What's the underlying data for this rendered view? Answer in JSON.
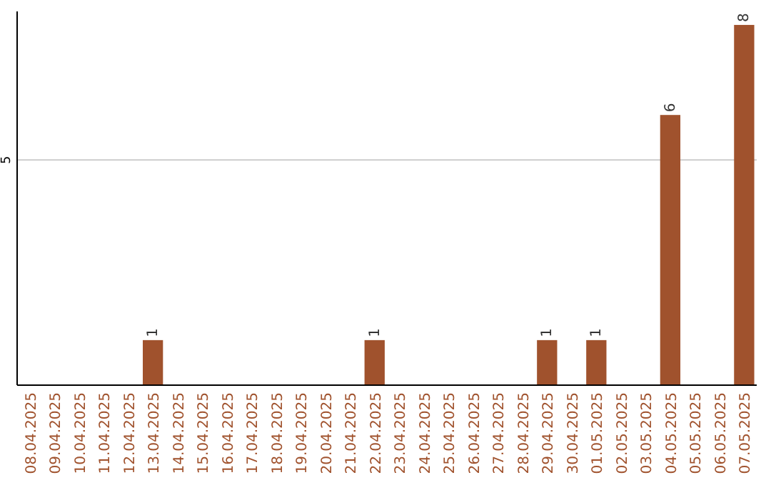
{
  "chart_data": {
    "type": "bar",
    "categories": [
      "08.04.2025",
      "09.04.2025",
      "10.04.2025",
      "11.04.2025",
      "12.04.2025",
      "13.04.2025",
      "14.04.2025",
      "15.04.2025",
      "16.04.2025",
      "17.04.2025",
      "18.04.2025",
      "19.04.2025",
      "20.04.2025",
      "21.04.2025",
      "22.04.2025",
      "23.04.2025",
      "24.04.2025",
      "25.04.2025",
      "26.04.2025",
      "27.04.2025",
      "28.04.2025",
      "29.04.2025",
      "30.04.2025",
      "01.05.2025",
      "02.05.2025",
      "03.05.2025",
      "04.05.2025",
      "05.05.2025",
      "06.05.2025",
      "07.05.2025"
    ],
    "values": [
      0,
      0,
      0,
      0,
      0,
      1,
      0,
      0,
      0,
      0,
      0,
      0,
      0,
      0,
      1,
      0,
      0,
      0,
      0,
      0,
      0,
      1,
      0,
      1,
      0,
      0,
      6,
      0,
      0,
      8
    ],
    "value_labels": [
      null,
      null,
      null,
      null,
      null,
      "1",
      null,
      null,
      null,
      null,
      null,
      null,
      null,
      null,
      "1",
      null,
      null,
      null,
      null,
      null,
      null,
      "1",
      null,
      "1",
      null,
      null,
      "6",
      null,
      null,
      "8"
    ],
    "color": "#a0522d",
    "ylim": [
      0,
      8.3
    ],
    "yticks": [
      5
    ],
    "grid": "y"
  }
}
